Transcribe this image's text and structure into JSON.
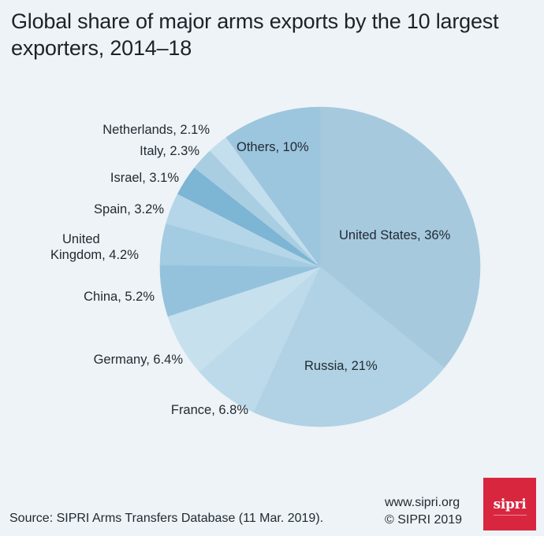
{
  "title": {
    "line1": "Global share of major arms exports by the 10 largest",
    "line2": "exporters, 2014–18"
  },
  "chart_data": {
    "type": "pie",
    "title": "Global share of major arms exports by the 10 largest exporters, 2014–18",
    "unit": "%",
    "start": "12 o'clock, clockwise",
    "slices": [
      {
        "label": "United States",
        "value": 36,
        "text": "United States, 36%",
        "color": "#a6c9de"
      },
      {
        "label": "Russia",
        "value": 21,
        "text": "Russia, 21%",
        "color": "#b0d2e4"
      },
      {
        "label": "France",
        "value": 6.8,
        "text": "France, 6.8%",
        "color": "#bcdaea"
      },
      {
        "label": "Germany",
        "value": 6.4,
        "text": "Germany, 6.4%",
        "color": "#c7e0ed"
      },
      {
        "label": "China",
        "value": 5.2,
        "text": "China, 5.2%",
        "color": "#94c2dc"
      },
      {
        "label": "United Kingdom",
        "value": 4.2,
        "text_line1": "United",
        "text_line2": "Kingdom, 4.2%",
        "color": "#a3cbe1"
      },
      {
        "label": "Spain",
        "value": 3.2,
        "text": "Spain, 3.2%",
        "color": "#b5d6e8"
      },
      {
        "label": "Israel",
        "value": 3.1,
        "text": "Israel, 3.1%",
        "color": "#7db5d4"
      },
      {
        "label": "Italy",
        "value": 2.3,
        "text": "Italy, 2.3%",
        "color": "#a9cde1"
      },
      {
        "label": "Netherlands",
        "value": 2.1,
        "text": "Netherlands, 2.1%",
        "color": "#c3deec"
      },
      {
        "label": "Others",
        "value": 10,
        "text": "Others, 10%",
        "color": "#9cc5de"
      }
    ]
  },
  "footer": {
    "source": "Source: SIPRI Arms Transfers Database (11 Mar. 2019).",
    "website": "www.sipri.org",
    "copyright": "© SIPRI 2019",
    "logo_text": "sipri",
    "logo_color": "#d9263f"
  }
}
